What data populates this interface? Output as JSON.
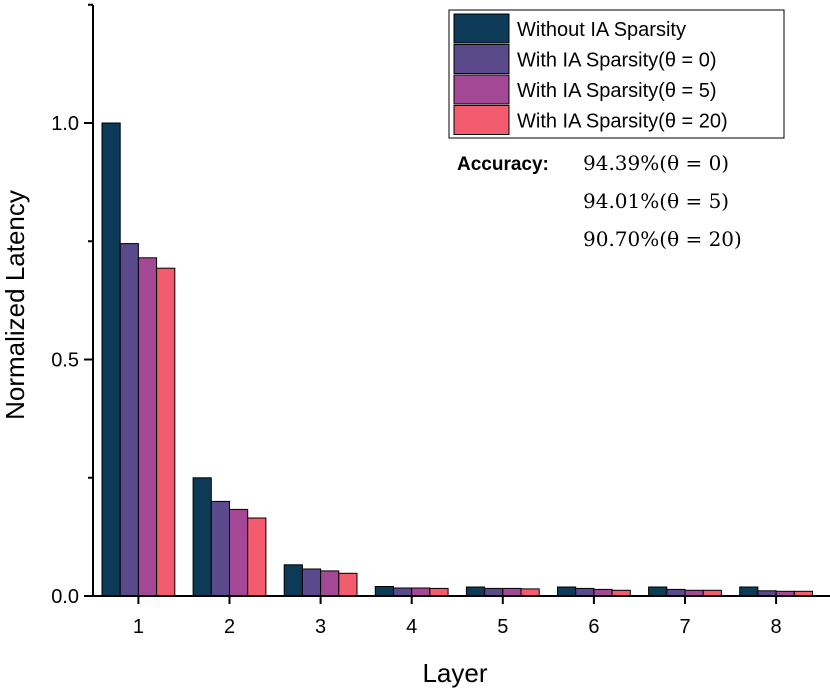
{
  "chart_data": {
    "type": "bar",
    "title": "",
    "xlabel": "Layer",
    "ylabel": "Normalized Latency",
    "ylim": [
      0,
      1.25
    ],
    "yticks": [
      "0.0",
      "0.5",
      "1.0"
    ],
    "categories": [
      "1",
      "2",
      "3",
      "4",
      "5",
      "6",
      "7",
      "8"
    ],
    "series": [
      {
        "name": "Without IA Sparsity",
        "color": "#0d3a57",
        "values": [
          1.0,
          0.25,
          0.066,
          0.02,
          0.019,
          0.019,
          0.019,
          0.019
        ]
      },
      {
        "name": "With IA Sparsity(θ = 0)",
        "color": "#5a4a8c",
        "values": [
          0.745,
          0.2,
          0.057,
          0.017,
          0.016,
          0.016,
          0.014,
          0.011
        ]
      },
      {
        "name": "With IA Sparsity(θ = 5)",
        "color": "#a34895",
        "values": [
          0.715,
          0.183,
          0.053,
          0.017,
          0.016,
          0.014,
          0.012,
          0.01
        ]
      },
      {
        "name": "With IA Sparsity(θ = 20)",
        "color": "#f25c6e",
        "values": [
          0.693,
          0.165,
          0.048,
          0.016,
          0.015,
          0.012,
          0.012,
          0.01
        ]
      }
    ],
    "legend_position": "top-right",
    "annotation": {
      "label": "Accuracy:",
      "lines": [
        "94.39%(θ = 0)",
        "94.01%(θ = 5)",
        "90.70%(θ = 20)"
      ]
    }
  }
}
